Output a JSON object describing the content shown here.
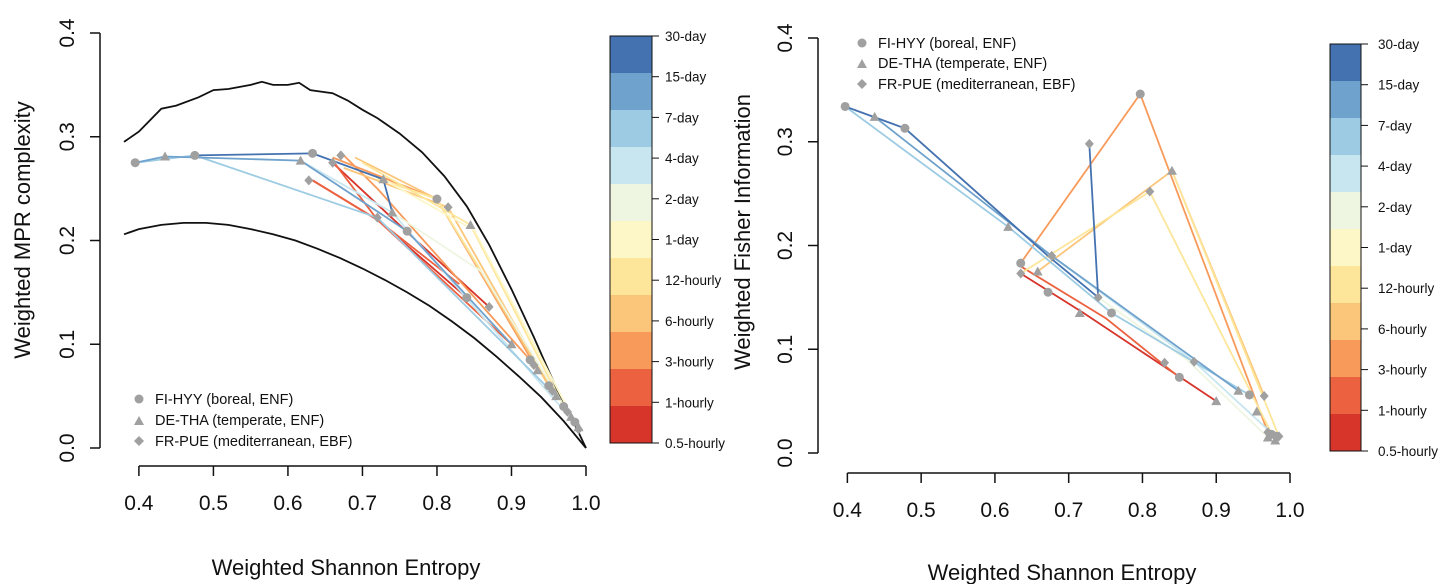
{
  "chart_data": [
    {
      "type": "line",
      "xlabel": "Weighted Shannon Entropy",
      "ylabel": "Weighted MPR complexity",
      "xlim": [
        0.38,
        1.0
      ],
      "ylim": [
        0.0,
        0.4
      ],
      "xticks": [
        "0.4",
        "0.5",
        "0.6",
        "0.7",
        "0.8",
        "0.9",
        "1.0"
      ],
      "xtick_values": [
        0.4,
        0.5,
        0.6,
        0.7,
        0.8,
        0.9,
        1.0
      ],
      "yticks": [
        "0.0",
        "0.1",
        "0.2",
        "0.3",
        "0.4"
      ],
      "ytick_values": [
        0.0,
        0.1,
        0.2,
        0.3,
        0.4
      ],
      "bounds": {
        "upper": [
          [
            0.38,
            0.295
          ],
          [
            0.4,
            0.305
          ],
          [
            0.43,
            0.327
          ],
          [
            0.45,
            0.33
          ],
          [
            0.48,
            0.338
          ],
          [
            0.5,
            0.345
          ],
          [
            0.52,
            0.346
          ],
          [
            0.55,
            0.35
          ],
          [
            0.565,
            0.353
          ],
          [
            0.58,
            0.35
          ],
          [
            0.6,
            0.35
          ],
          [
            0.615,
            0.352
          ],
          [
            0.63,
            0.345
          ],
          [
            0.66,
            0.342
          ],
          [
            0.68,
            0.335
          ],
          [
            0.7,
            0.326
          ],
          [
            0.72,
            0.318
          ],
          [
            0.75,
            0.303
          ],
          [
            0.78,
            0.285
          ],
          [
            0.81,
            0.262
          ],
          [
            0.84,
            0.233
          ],
          [
            0.87,
            0.196
          ],
          [
            0.9,
            0.153
          ],
          [
            0.93,
            0.107
          ],
          [
            0.96,
            0.058
          ],
          [
            0.98,
            0.03
          ],
          [
            1.0,
            0.0
          ]
        ],
        "lower": [
          [
            0.38,
            0.206
          ],
          [
            0.4,
            0.211
          ],
          [
            0.43,
            0.215
          ],
          [
            0.46,
            0.217
          ],
          [
            0.49,
            0.217
          ],
          [
            0.52,
            0.215
          ],
          [
            0.55,
            0.211
          ],
          [
            0.58,
            0.206
          ],
          [
            0.61,
            0.2
          ],
          [
            0.64,
            0.192
          ],
          [
            0.67,
            0.183
          ],
          [
            0.7,
            0.173
          ],
          [
            0.73,
            0.162
          ],
          [
            0.76,
            0.15
          ],
          [
            0.79,
            0.137
          ],
          [
            0.82,
            0.122
          ],
          [
            0.85,
            0.106
          ],
          [
            0.88,
            0.088
          ],
          [
            0.91,
            0.069
          ],
          [
            0.94,
            0.049
          ],
          [
            0.97,
            0.026
          ],
          [
            1.0,
            0.0
          ]
        ]
      },
      "sites": [
        {
          "name": "FI-HYY (boreal, ENF)",
          "marker": "circle"
        },
        {
          "name": "DE-THA (temperate, ENF)",
          "marker": "triangle"
        },
        {
          "name": "FR-PUE (mediterranean, EBF)",
          "marker": "diamond"
        }
      ],
      "points": {
        "FI-HYY": [
          [
            0.84,
            0.145
          ],
          [
            0.76,
            0.209
          ],
          [
            0.8,
            0.24
          ],
          [
            0.633,
            0.284
          ],
          [
            0.475,
            0.282
          ],
          [
            0.395,
            0.275
          ],
          [
            0.925,
            0.085
          ],
          [
            0.95,
            0.06
          ],
          [
            0.97,
            0.04
          ],
          [
            0.985,
            0.025
          ]
        ],
        "DE-THA": [
          [
            0.9,
            0.1
          ],
          [
            0.74,
            0.227
          ],
          [
            0.845,
            0.215
          ],
          [
            0.728,
            0.259
          ],
          [
            0.617,
            0.277
          ],
          [
            0.435,
            0.281
          ],
          [
            0.935,
            0.075
          ],
          [
            0.96,
            0.05
          ],
          [
            0.98,
            0.03
          ],
          [
            0.99,
            0.02
          ]
        ],
        "FR-PUE": [
          [
            0.87,
            0.136
          ],
          [
            0.72,
            0.222
          ],
          [
            0.815,
            0.232
          ],
          [
            0.628,
            0.258
          ],
          [
            0.671,
            0.282
          ],
          [
            0.66,
            0.275
          ],
          [
            0.93,
            0.08
          ],
          [
            0.955,
            0.055
          ],
          [
            0.975,
            0.035
          ],
          [
            0.99,
            0.018
          ]
        ]
      },
      "series": [
        {
          "name": "0.5-hourly",
          "segments": [
            [
              [
                0.633,
                0.258
              ],
              [
                0.72,
                0.22
              ],
              [
                0.84,
                0.145
              ]
            ],
            [
              [
                0.66,
                0.275
              ],
              [
                0.76,
                0.208
              ],
              [
                0.87,
                0.136
              ]
            ]
          ]
        },
        {
          "name": "1-hourly",
          "segments": [
            [
              [
                0.66,
                0.277
              ],
              [
                0.72,
                0.22
              ],
              [
                0.9,
                0.1
              ]
            ],
            [
              [
                0.633,
                0.258
              ],
              [
                0.72,
                0.22
              ],
              [
                0.83,
                0.158
              ]
            ]
          ]
        },
        {
          "name": "3-hourly",
          "segments": [
            [
              [
                0.675,
                0.282
              ],
              [
                0.72,
                0.25
              ],
              [
                0.925,
                0.085
              ]
            ],
            [
              [
                0.66,
                0.28
              ],
              [
                0.8,
                0.24
              ],
              [
                0.935,
                0.075
              ]
            ]
          ]
        },
        {
          "name": "6-hourly",
          "segments": [
            [
              [
                0.69,
                0.28
              ],
              [
                0.8,
                0.24
              ],
              [
                0.95,
                0.06
              ]
            ],
            [
              [
                0.675,
                0.27
              ],
              [
                0.815,
                0.232
              ],
              [
                0.955,
                0.055
              ]
            ]
          ]
        },
        {
          "name": "12-hourly",
          "segments": [
            [
              [
                0.7,
                0.275
              ],
              [
                0.845,
                0.215
              ],
              [
                0.97,
                0.04
              ]
            ],
            [
              [
                0.72,
                0.26
              ],
              [
                0.8,
                0.24
              ],
              [
                0.975,
                0.035
              ]
            ]
          ]
        },
        {
          "name": "1-day",
          "segments": [
            [
              [
                0.728,
                0.259
              ],
              [
                0.85,
                0.21
              ],
              [
                0.985,
                0.025
              ]
            ]
          ]
        },
        {
          "name": "2-day",
          "segments": [
            [
              [
                0.74,
                0.227
              ],
              [
                0.86,
                0.17
              ],
              [
                0.99,
                0.018
              ]
            ]
          ]
        },
        {
          "name": "4-day",
          "segments": [
            [
              [
                0.617,
                0.277
              ],
              [
                0.74,
                0.227
              ],
              [
                0.99,
                0.02
              ]
            ]
          ]
        },
        {
          "name": "7-day",
          "segments": [
            [
              [
                0.395,
                0.275
              ],
              [
                0.475,
                0.282
              ],
              [
                0.72,
                0.222
              ],
              [
                0.96,
                0.05
              ]
            ]
          ]
        },
        {
          "name": "15-day",
          "segments": [
            [
              [
                0.395,
                0.275
              ],
              [
                0.435,
                0.281
              ],
              [
                0.617,
                0.277
              ],
              [
                0.76,
                0.209
              ],
              [
                0.9,
                0.1
              ]
            ]
          ]
        },
        {
          "name": "30-day",
          "segments": [
            [
              [
                0.475,
                0.282
              ],
              [
                0.633,
                0.284
              ],
              [
                0.728,
                0.259
              ],
              [
                0.74,
                0.227
              ]
            ]
          ]
        }
      ],
      "legend_position": "bottom-left"
    },
    {
      "type": "line",
      "xlabel": "Weighted Shannon Entropy",
      "ylabel": "Weighted Fisher Information",
      "xlim": [
        0.39,
        1.0
      ],
      "ylim": [
        0.0,
        0.4
      ],
      "xticks": [
        "0.4",
        "0.5",
        "0.6",
        "0.7",
        "0.8",
        "0.9",
        "1.0"
      ],
      "xtick_values": [
        0.4,
        0.5,
        0.6,
        0.7,
        0.8,
        0.9,
        1.0
      ],
      "yticks": [
        "0.0",
        "0.1",
        "0.2",
        "0.3",
        "0.4"
      ],
      "ytick_values": [
        0.0,
        0.1,
        0.2,
        0.3,
        0.4
      ],
      "sites": [
        {
          "name": "FI-HYY (boreal, ENF)",
          "marker": "circle"
        },
        {
          "name": "DE-THA (temperate, ENF)",
          "marker": "triangle"
        },
        {
          "name": "FR-PUE (mediterranean, EBF)",
          "marker": "diamond"
        }
      ],
      "points": {
        "FI-HYY": [
          [
            0.397,
            0.334
          ],
          [
            0.478,
            0.313
          ],
          [
            0.797,
            0.346
          ],
          [
            0.635,
            0.183
          ],
          [
            0.672,
            0.155
          ],
          [
            0.758,
            0.135
          ],
          [
            0.85,
            0.073
          ],
          [
            0.945,
            0.056
          ],
          [
            0.975,
            0.018
          ],
          [
            0.982,
            0.016
          ]
        ],
        "DE-THA": [
          [
            0.437,
            0.324
          ],
          [
            0.618,
            0.218
          ],
          [
            0.84,
            0.272
          ],
          [
            0.658,
            0.175
          ],
          [
            0.715,
            0.135
          ],
          [
            0.9,
            0.05
          ],
          [
            0.93,
            0.06
          ],
          [
            0.955,
            0.04
          ],
          [
            0.98,
            0.012
          ],
          [
            0.97,
            0.015
          ]
        ],
        "FR-PUE": [
          [
            0.728,
            0.298
          ],
          [
            0.81,
            0.252
          ],
          [
            0.635,
            0.173
          ],
          [
            0.677,
            0.19
          ],
          [
            0.74,
            0.15
          ],
          [
            0.83,
            0.087
          ],
          [
            0.87,
            0.088
          ],
          [
            0.965,
            0.055
          ],
          [
            0.97,
            0.02
          ],
          [
            0.985,
            0.016
          ]
        ]
      },
      "series": [
        {
          "name": "0.5-hourly",
          "segments": [
            [
              [
                0.635,
                0.173
              ],
              [
                0.72,
                0.135
              ],
              [
                0.9,
                0.05
              ]
            ]
          ]
        },
        {
          "name": "1-hourly",
          "segments": [
            [
              [
                0.635,
                0.18
              ],
              [
                0.75,
                0.13
              ],
              [
                0.85,
                0.073
              ]
            ]
          ]
        },
        {
          "name": "3-hourly",
          "segments": [
            [
              [
                0.635,
                0.183
              ],
              [
                0.797,
                0.346
              ],
              [
                0.97,
                0.02
              ]
            ]
          ]
        },
        {
          "name": "6-hourly",
          "segments": [
            [
              [
                0.658,
                0.175
              ],
              [
                0.84,
                0.272
              ],
              [
                0.965,
                0.055
              ]
            ]
          ]
        },
        {
          "name": "12-hourly",
          "segments": [
            [
              [
                0.635,
                0.173
              ],
              [
                0.81,
                0.252
              ],
              [
                0.98,
                0.012
              ]
            ],
            [
              [
                0.84,
                0.272
              ],
              [
                0.985,
                0.016
              ]
            ]
          ]
        },
        {
          "name": "2-day",
          "segments": [
            [
              [
                0.74,
                0.15
              ],
              [
                0.86,
                0.09
              ],
              [
                0.97,
                0.015
              ]
            ]
          ]
        },
        {
          "name": "4-day",
          "segments": [
            [
              [
                0.677,
                0.19
              ],
              [
                0.87,
                0.088
              ],
              [
                0.98,
                0.016
              ]
            ]
          ]
        },
        {
          "name": "7-day",
          "segments": [
            [
              [
                0.397,
                0.334
              ],
              [
                0.618,
                0.218
              ],
              [
                0.758,
                0.135
              ],
              [
                0.945,
                0.056
              ]
            ]
          ]
        },
        {
          "name": "15-day",
          "segments": [
            [
              [
                0.437,
                0.324
              ],
              [
                0.677,
                0.19
              ],
              [
                0.93,
                0.06
              ]
            ]
          ]
        },
        {
          "name": "30-day",
          "segments": [
            [
              [
                0.397,
                0.334
              ],
              [
                0.478,
                0.313
              ],
              [
                0.672,
                0.19
              ],
              [
                0.74,
                0.15
              ],
              [
                0.728,
                0.298
              ]
            ]
          ]
        }
      ],
      "legend_position": "top-left"
    }
  ],
  "colorbar": {
    "labels": [
      "30-day",
      "15-day",
      "7-day",
      "4-day",
      "2-day",
      "1-day",
      "12-hourly",
      "6-hourly",
      "3-hourly",
      "1-hourly",
      "0.5-hourly"
    ],
    "colors": [
      "#4472b0",
      "#6fa2cc",
      "#9ccbe3",
      "#c8e6f0",
      "#eef6e2",
      "#fdf6c6",
      "#fde69a",
      "#fcc67a",
      "#f89a5a",
      "#ec6240",
      "#d7342a"
    ]
  },
  "marker_color": "#a0a0a0"
}
